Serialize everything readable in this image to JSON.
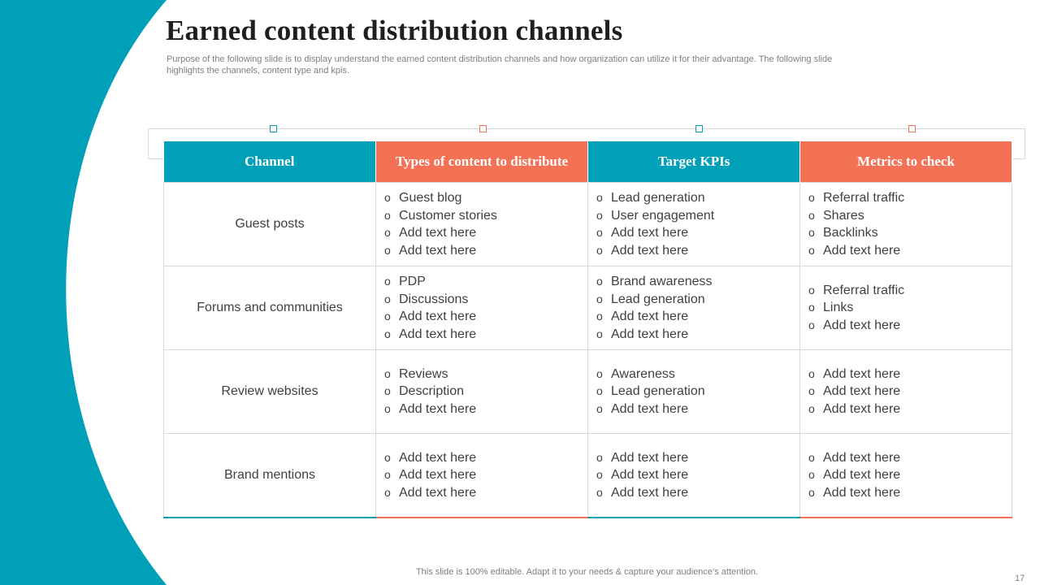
{
  "slide": {
    "title": "Earned content distribution channels",
    "subtitle": "Purpose of the following slide is to display understand the earned content distribution channels and how organization can utilize it for their advantage. The following slide highlights the channels, content type and kpis.",
    "footer": "This slide is 100% editable. Adapt it to your needs & capture your audience’s attention.",
    "page_number": "17"
  },
  "colors": {
    "accent_teal": "#00a0b8",
    "accent_coral": "#f37256",
    "border": "#d9d9d9"
  },
  "table": {
    "headers": [
      "Channel",
      "Types of content to distribute",
      "Target KPIs",
      "Metrics to check"
    ],
    "rows": [
      {
        "channel": "Guest posts",
        "content": [
          "Guest blog",
          "Customer stories",
          "Add text here",
          "Add text here"
        ],
        "kpis": [
          "Lead generation",
          "User engagement",
          "Add text here",
          "Add text here"
        ],
        "metrics": [
          "Referral traffic",
          "Shares",
          "Backlinks",
          "Add text here"
        ]
      },
      {
        "channel": "Forums and communities",
        "content": [
          "PDP",
          "Discussions",
          "Add text here",
          "Add text here"
        ],
        "kpis": [
          "Brand awareness",
          "Lead generation",
          "Add text here",
          "Add text here"
        ],
        "metrics": [
          "Referral traffic",
          "Links",
          "Add text here"
        ]
      },
      {
        "channel": "Review websites",
        "content": [
          "Reviews",
          "Description",
          "Add text here"
        ],
        "kpis": [
          "Awareness",
          "Lead generation",
          "Add text here"
        ],
        "metrics": [
          "Add text here",
          "Add text here",
          "Add text here"
        ]
      },
      {
        "channel": "Brand mentions",
        "content": [
          "Add text here",
          "Add text here",
          "Add text here"
        ],
        "kpis": [
          "Add text here",
          "Add text here",
          "Add text here"
        ],
        "metrics": [
          "Add text here",
          "Add text here",
          "Add text here"
        ]
      }
    ]
  }
}
